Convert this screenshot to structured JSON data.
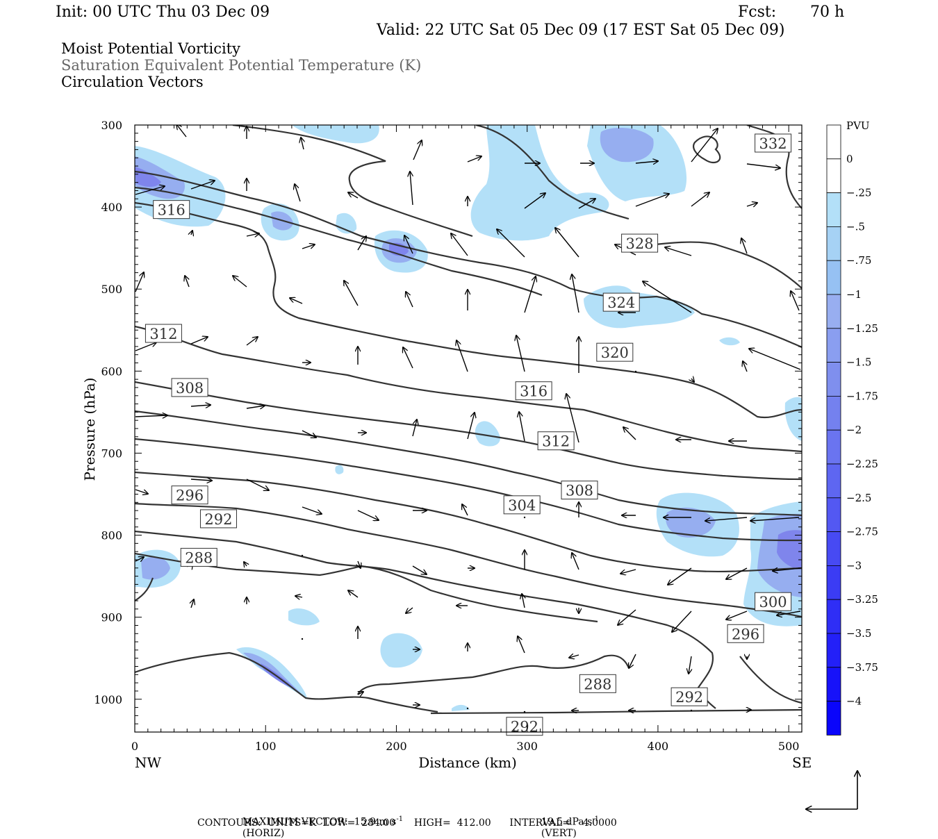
{
  "header": {
    "init": "Init: 00 UTC Thu 03 Dec 09",
    "fcst_label": "Fcst:",
    "fcst_value": "70 h",
    "valid": "Valid: 22 UTC Sat 05 Dec 09 (17 EST Sat 05 Dec 09)"
  },
  "titles": {
    "line1": "Moist Potential Vorticity",
    "line2": "Saturation Equivalent Potential Temperature (K)",
    "line3": "Circulation Vectors"
  },
  "colors": {
    "line1": "#000000",
    "line2": "#666666",
    "line3": "#000000",
    "contour": "#333333",
    "fill_light": "#b3e0f8",
    "fill_mid": "#96aef0",
    "fill_dark": "#7f85ec"
  },
  "chart_data": {
    "type": "cross-section",
    "xlabel": "Distance (km)",
    "ylabel": "Pressure (hPa)",
    "xlim": [
      0,
      510
    ],
    "ylim": [
      1040,
      300
    ],
    "x_ticks": [
      "0",
      "100",
      "200",
      "300",
      "400",
      "500"
    ],
    "y_ticks": [
      "300",
      "400",
      "500",
      "600",
      "700",
      "800",
      "900",
      "1000"
    ],
    "left_end_label": "NW",
    "right_end_label": "SE",
    "colorbar": {
      "unit": "PVU",
      "levels": [
        "0",
        "-.25",
        "-.5",
        "-.75",
        "-1",
        "-1.25",
        "-1.5",
        "-1.75",
        "-2",
        "-2.25",
        "-2.5",
        "-2.75",
        "-3",
        "-3.25",
        "-3.5",
        "-3.75",
        "-4"
      ],
      "colors": [
        "#ffffff",
        "#ffffff",
        "#b3e0f8",
        "#a6d2f5",
        "#96c1f3",
        "#98aef0",
        "#8a9ef0",
        "#7f8fee",
        "#7481ef",
        "#6a74f0",
        "#5e66f1",
        "#5358f2",
        "#474af3",
        "#3b3cf4",
        "#2f2ef6",
        "#2320f8",
        "#1712f9",
        "#0a05fb"
      ]
    },
    "contour_labels": [
      {
        "text": "332",
        "x": 488,
        "p": 322
      },
      {
        "text": "328",
        "x": 386,
        "p": 444
      },
      {
        "text": "324",
        "x": 372,
        "p": 516
      },
      {
        "text": "320",
        "x": 367,
        "p": 577
      },
      {
        "text": "316",
        "x": 28,
        "p": 403
      },
      {
        "text": "316",
        "x": 305,
        "p": 624
      },
      {
        "text": "312",
        "x": 22,
        "p": 554
      },
      {
        "text": "312",
        "x": 322,
        "p": 685
      },
      {
        "text": "308",
        "x": 42,
        "p": 620
      },
      {
        "text": "308",
        "x": 340,
        "p": 745
      },
      {
        "text": "304",
        "x": 296,
        "p": 763
      },
      {
        "text": "300",
        "x": 488,
        "p": 881
      },
      {
        "text": "296",
        "x": 42,
        "p": 751
      },
      {
        "text": "296",
        "x": 467,
        "p": 920
      },
      {
        "text": "292",
        "x": 64,
        "p": 780
      },
      {
        "text": "292",
        "x": 424,
        "p": 997
      },
      {
        "text": "292",
        "x": 298,
        "p": 1033
      },
      {
        "text": "288",
        "x": 49,
        "p": 827
      },
      {
        "text": "288",
        "x": 354,
        "p": 981
      }
    ],
    "vector_note": "MAXIMUM VECTOR:  15.9 m s",
    "vector_horiz": "(HORIZ)",
    "vector_vert_value": "19.5 dPa s",
    "vector_vert": "(VERT)",
    "superscript": "-1",
    "contours_info": "CONTOURS:  UNITS=K  LOW=  284.00      HIGH=  412.00      INTERVAL=    4.0000"
  }
}
